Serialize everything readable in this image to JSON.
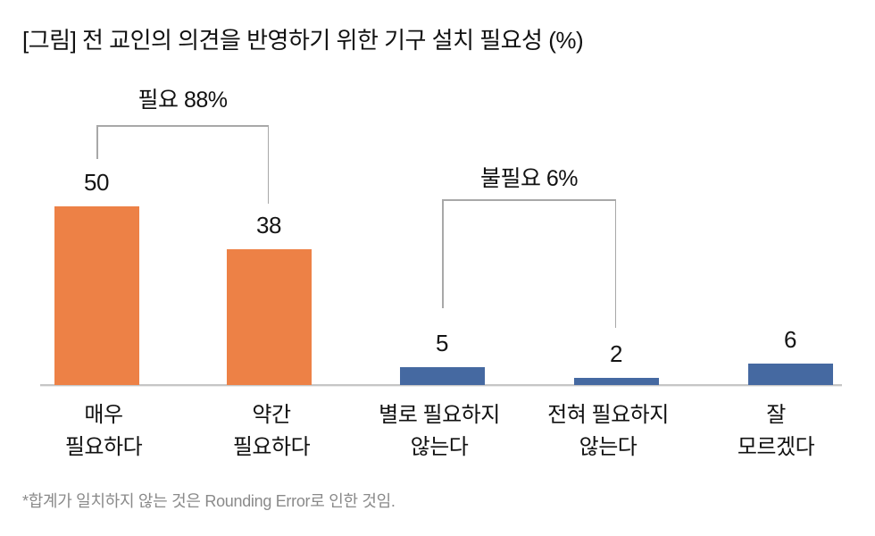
{
  "title": "[그림] 전 교인의 의견을 반영하기 위한 기구 설치 필요성 (%)",
  "footnote": "*합계가 일치하지 않는 것은 Rounding Error로 인한 것임.",
  "colors": {
    "positive_orange": "#ED8146",
    "negative_blue": "#4569A1",
    "axis_gray": "#C6C6C6",
    "bracket_gray": "#A8A8A8",
    "text_black": "#111111",
    "footnote_gray": "#8A8A8A"
  },
  "chart_data": {
    "type": "bar",
    "title": "[그림] 전 교인의 의견을 반영하기 위한 기구 설치 필요성 (%)",
    "categories": [
      "매우 필요하다",
      "약간 필요하다",
      "별로 필요하지 않는다",
      "전혀 필요하지 않는다",
      "잘 모르겠다"
    ],
    "category_lines": [
      [
        "매우",
        "필요하다"
      ],
      [
        "약간",
        "필요하다"
      ],
      [
        "별로 필요하지",
        "않는다"
      ],
      [
        "전혀 필요하지",
        "않는다"
      ],
      [
        "잘",
        "모르겠다"
      ]
    ],
    "values": [
      50,
      38,
      5,
      2,
      6
    ],
    "value_labels": [
      "50",
      "38",
      "5",
      "2",
      "6"
    ],
    "bar_colors": [
      "#ED8146",
      "#ED8146",
      "#4569A1",
      "#4569A1",
      "#4569A1"
    ],
    "annotations": [
      {
        "label": "필요 88%",
        "from": 0,
        "to": 1
      },
      {
        "label": "불필요 6%",
        "from": 2,
        "to": 3
      }
    ],
    "xlabel": "",
    "ylabel": "",
    "ylim": [
      0,
      55
    ],
    "grid": false,
    "legend": false,
    "unit": "%",
    "footnote": "*합계가 일치하지 않는 것은 Rounding Error로 인한 것임."
  }
}
